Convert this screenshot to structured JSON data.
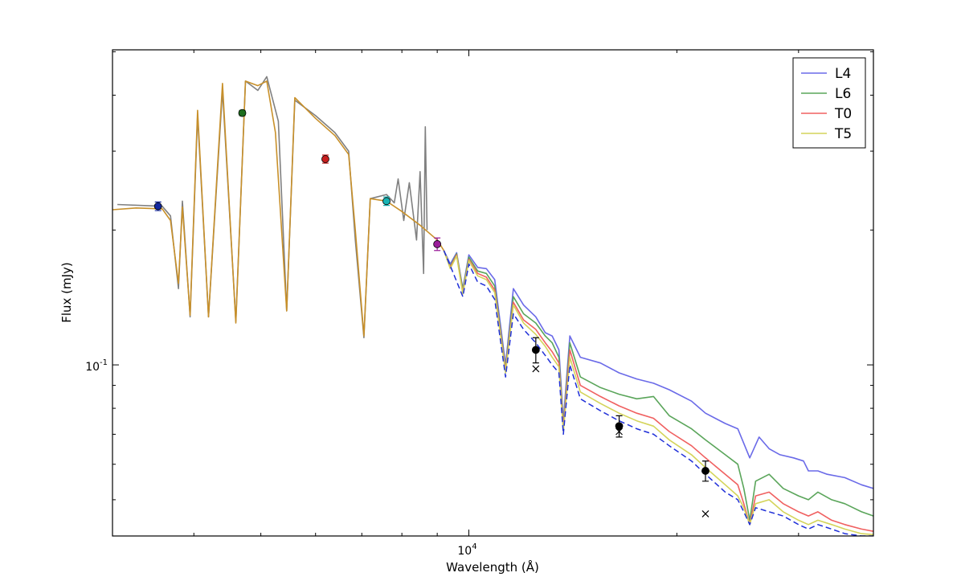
{
  "chart_data": {
    "type": "line",
    "title": "",
    "xlabel": "Wavelength (Å)",
    "ylabel": "Flux (mJy)",
    "x_scale": "log",
    "y_scale": "log",
    "xlim": [
      3050,
      38500
    ],
    "ylim": [
      0.0415,
      0.505
    ],
    "x_major_ticks": [
      {
        "value": 10000,
        "base": "10",
        "exp": "4"
      }
    ],
    "y_major_ticks": [
      {
        "value": 0.1,
        "base": "10",
        "exp": "-1"
      }
    ],
    "grid": false,
    "legend_position": "top-right",
    "legend": [
      {
        "label": "L4",
        "color": "#6a6ae8"
      },
      {
        "label": "L6",
        "color": "#5aa55a"
      },
      {
        "label": "T0",
        "color": "#f06060"
      },
      {
        "label": "T5",
        "color": "#d4d45a"
      }
    ],
    "observed_spectrum": {
      "color": "#808080",
      "points": [
        [
          3100,
          0.228
        ],
        [
          3600,
          0.226
        ],
        [
          3700,
          0.215
        ],
        [
          3800,
          0.148
        ],
        [
          3850,
          0.232
        ],
        [
          3950,
          0.128
        ],
        [
          4050,
          0.36
        ],
        [
          4200,
          0.128
        ],
        [
          4400,
          0.41
        ],
        [
          4600,
          0.125
        ],
        [
          4750,
          0.43
        ],
        [
          4950,
          0.41
        ],
        [
          5100,
          0.44
        ],
        [
          5300,
          0.35
        ],
        [
          5450,
          0.132
        ],
        [
          5600,
          0.39
        ],
        [
          6000,
          0.36
        ],
        [
          6400,
          0.33
        ],
        [
          6700,
          0.3
        ],
        [
          6850,
          0.19
        ],
        [
          7050,
          0.115
        ],
        [
          7200,
          0.235
        ],
        [
          7600,
          0.24
        ],
        [
          7800,
          0.23
        ],
        [
          7900,
          0.26
        ],
        [
          8050,
          0.21
        ],
        [
          8200,
          0.255
        ],
        [
          8400,
          0.19
        ],
        [
          8500,
          0.27
        ],
        [
          8600,
          0.16
        ],
        [
          8650,
          0.34
        ],
        [
          8700,
          0.2
        ]
      ]
    },
    "model_common": {
      "color": "#c8902a",
      "points": [
        [
          3050,
          0.222
        ],
        [
          3300,
          0.224
        ],
        [
          3600,
          0.223
        ],
        [
          3700,
          0.21
        ],
        [
          3800,
          0.152
        ],
        [
          3850,
          0.225
        ],
        [
          3950,
          0.129
        ],
        [
          4050,
          0.37
        ],
        [
          4200,
          0.128
        ],
        [
          4400,
          0.425
        ],
        [
          4600,
          0.124
        ],
        [
          4750,
          0.43
        ],
        [
          4950,
          0.42
        ],
        [
          5100,
          0.43
        ],
        [
          5250,
          0.33
        ],
        [
          5450,
          0.132
        ],
        [
          5600,
          0.395
        ],
        [
          6000,
          0.355
        ],
        [
          6400,
          0.325
        ],
        [
          6700,
          0.295
        ],
        [
          6850,
          0.2
        ],
        [
          7050,
          0.116
        ],
        [
          7200,
          0.235
        ],
        [
          7600,
          0.232
        ],
        [
          8000,
          0.22
        ],
        [
          8500,
          0.205
        ],
        [
          9000,
          0.19
        ],
        [
          9200,
          0.18
        ]
      ]
    },
    "series": [
      {
        "name": "L4",
        "color": "#6a6ae8",
        "points": [
          [
            9200,
            0.18
          ],
          [
            9400,
            0.168
          ],
          [
            9600,
            0.178
          ],
          [
            9800,
            0.148
          ],
          [
            10000,
            0.176
          ],
          [
            10300,
            0.165
          ],
          [
            10600,
            0.164
          ],
          [
            10900,
            0.155
          ],
          [
            11300,
            0.1
          ],
          [
            11600,
            0.148
          ],
          [
            12000,
            0.136
          ],
          [
            12500,
            0.128
          ],
          [
            12900,
            0.118
          ],
          [
            13200,
            0.116
          ],
          [
            13500,
            0.108
          ],
          [
            13700,
            0.075
          ],
          [
            14000,
            0.116
          ],
          [
            14500,
            0.104
          ],
          [
            15500,
            0.101
          ],
          [
            16500,
            0.096
          ],
          [
            17500,
            0.093
          ],
          [
            18500,
            0.091
          ],
          [
            19500,
            0.088
          ],
          [
            21000,
            0.083
          ],
          [
            22000,
            0.078
          ],
          [
            23500,
            0.074
          ],
          [
            24500,
            0.072
          ],
          [
            25500,
            0.062
          ],
          [
            26300,
            0.069
          ],
          [
            27200,
            0.065
          ],
          [
            28200,
            0.063
          ],
          [
            29500,
            0.062
          ],
          [
            30500,
            0.061
          ],
          [
            31000,
            0.058
          ],
          [
            32000,
            0.058
          ],
          [
            33000,
            0.057
          ],
          [
            35000,
            0.056
          ],
          [
            37000,
            0.054
          ],
          [
            38500,
            0.053
          ]
        ]
      },
      {
        "name": "L6",
        "color": "#5aa55a",
        "points": [
          [
            9200,
            0.18
          ],
          [
            9400,
            0.166
          ],
          [
            9600,
            0.177
          ],
          [
            9800,
            0.147
          ],
          [
            10000,
            0.174
          ],
          [
            10300,
            0.162
          ],
          [
            10600,
            0.16
          ],
          [
            10900,
            0.15
          ],
          [
            11300,
            0.098
          ],
          [
            11600,
            0.142
          ],
          [
            12000,
            0.13
          ],
          [
            12500,
            0.124
          ],
          [
            12900,
            0.116
          ],
          [
            13200,
            0.112
          ],
          [
            13500,
            0.104
          ],
          [
            13700,
            0.073
          ],
          [
            14000,
            0.112
          ],
          [
            14500,
            0.094
          ],
          [
            15500,
            0.089
          ],
          [
            16500,
            0.086
          ],
          [
            17500,
            0.084
          ],
          [
            18500,
            0.085
          ],
          [
            19500,
            0.077
          ],
          [
            21000,
            0.072
          ],
          [
            22000,
            0.068
          ],
          [
            23500,
            0.063
          ],
          [
            24500,
            0.06
          ],
          [
            25000,
            0.053
          ],
          [
            25500,
            0.045
          ],
          [
            26000,
            0.055
          ],
          [
            27200,
            0.057
          ],
          [
            28500,
            0.053
          ],
          [
            30000,
            0.051
          ],
          [
            31000,
            0.05
          ],
          [
            32000,
            0.052
          ],
          [
            33500,
            0.05
          ],
          [
            35000,
            0.049
          ],
          [
            37000,
            0.047
          ],
          [
            38500,
            0.046
          ]
        ]
      },
      {
        "name": "T0",
        "color": "#f06060",
        "points": [
          [
            9200,
            0.18
          ],
          [
            9400,
            0.165
          ],
          [
            9600,
            0.176
          ],
          [
            9800,
            0.145
          ],
          [
            10000,
            0.172
          ],
          [
            10300,
            0.16
          ],
          [
            10600,
            0.157
          ],
          [
            10900,
            0.147
          ],
          [
            11300,
            0.097
          ],
          [
            11600,
            0.138
          ],
          [
            12000,
            0.126
          ],
          [
            12500,
            0.12
          ],
          [
            12900,
            0.112
          ],
          [
            13200,
            0.107
          ],
          [
            13500,
            0.101
          ],
          [
            13700,
            0.072
          ],
          [
            14000,
            0.108
          ],
          [
            14500,
            0.09
          ],
          [
            15500,
            0.085
          ],
          [
            16500,
            0.081
          ],
          [
            17500,
            0.078
          ],
          [
            18500,
            0.076
          ],
          [
            19500,
            0.071
          ],
          [
            21000,
            0.066
          ],
          [
            22000,
            0.062
          ],
          [
            23500,
            0.057
          ],
          [
            24500,
            0.054
          ],
          [
            25000,
            0.049
          ],
          [
            25500,
            0.044
          ],
          [
            26000,
            0.051
          ],
          [
            27200,
            0.052
          ],
          [
            28500,
            0.049
          ],
          [
            30000,
            0.047
          ],
          [
            31000,
            0.046
          ],
          [
            32000,
            0.047
          ],
          [
            33500,
            0.045
          ],
          [
            35000,
            0.044
          ],
          [
            37000,
            0.043
          ],
          [
            38500,
            0.0425
          ]
        ]
      },
      {
        "name": "T5",
        "color": "#d4d45a",
        "points": [
          [
            9200,
            0.18
          ],
          [
            9400,
            0.164
          ],
          [
            9600,
            0.175
          ],
          [
            9800,
            0.144
          ],
          [
            10000,
            0.171
          ],
          [
            10300,
            0.158
          ],
          [
            10600,
            0.155
          ],
          [
            10900,
            0.145
          ],
          [
            11300,
            0.096
          ],
          [
            11600,
            0.136
          ],
          [
            12000,
            0.124
          ],
          [
            12500,
            0.117
          ],
          [
            12900,
            0.11
          ],
          [
            13200,
            0.104
          ],
          [
            13500,
            0.099
          ],
          [
            13700,
            0.071
          ],
          [
            14000,
            0.104
          ],
          [
            14500,
            0.087
          ],
          [
            15500,
            0.082
          ],
          [
            16500,
            0.078
          ],
          [
            17500,
            0.075
          ],
          [
            18500,
            0.073
          ],
          [
            19500,
            0.068
          ],
          [
            21000,
            0.063
          ],
          [
            22000,
            0.059
          ],
          [
            23500,
            0.054
          ],
          [
            24500,
            0.051
          ],
          [
            25000,
            0.048
          ],
          [
            25500,
            0.044
          ],
          [
            26000,
            0.049
          ],
          [
            27200,
            0.05
          ],
          [
            28500,
            0.047
          ],
          [
            30000,
            0.045
          ],
          [
            31000,
            0.044
          ],
          [
            32000,
            0.045
          ],
          [
            33500,
            0.044
          ],
          [
            35000,
            0.043
          ],
          [
            37000,
            0.042
          ],
          [
            38500,
            0.0418
          ]
        ]
      }
    ],
    "dashed_model": {
      "color": "#1f2fd8",
      "points": [
        [
          9200,
          0.18
        ],
        [
          9500,
          0.16
        ],
        [
          9800,
          0.142
        ],
        [
          10000,
          0.168
        ],
        [
          10300,
          0.153
        ],
        [
          10600,
          0.15
        ],
        [
          10900,
          0.14
        ],
        [
          11300,
          0.094
        ],
        [
          11600,
          0.13
        ],
        [
          12000,
          0.12
        ],
        [
          12500,
          0.112
        ],
        [
          12900,
          0.105
        ],
        [
          13200,
          0.1
        ],
        [
          13500,
          0.096
        ],
        [
          13700,
          0.07
        ],
        [
          14000,
          0.1
        ],
        [
          14500,
          0.084
        ],
        [
          15500,
          0.079
        ],
        [
          16500,
          0.075
        ],
        [
          17500,
          0.072
        ],
        [
          18500,
          0.07
        ],
        [
          19500,
          0.066
        ],
        [
          21000,
          0.061
        ],
        [
          22000,
          0.057
        ],
        [
          23500,
          0.052
        ],
        [
          24500,
          0.05
        ],
        [
          25000,
          0.047
        ],
        [
          25500,
          0.044
        ],
        [
          26000,
          0.048
        ],
        [
          27200,
          0.047
        ],
        [
          28500,
          0.046
        ],
        [
          30000,
          0.044
        ],
        [
          31000,
          0.043
        ],
        [
          32000,
          0.044
        ],
        [
          33500,
          0.043
        ],
        [
          35000,
          0.042
        ],
        [
          37000,
          0.0415
        ],
        [
          38500,
          0.0415
        ]
      ]
    },
    "photometry": [
      {
        "x": 3550,
        "y": 0.226,
        "err": 0.005,
        "color": "#1428a0"
      },
      {
        "x": 4700,
        "y": 0.365,
        "err": 0.005,
        "color": "#1e6e1e"
      },
      {
        "x": 6200,
        "y": 0.288,
        "err": 0.006,
        "color": "#c81e1e"
      },
      {
        "x": 7600,
        "y": 0.232,
        "err": 0.005,
        "color": "#18b4b4"
      },
      {
        "x": 9000,
        "y": 0.186,
        "err": 0.006,
        "color": "#9a1e9a"
      },
      {
        "x": 12500,
        "y": 0.108,
        "err": 0.007,
        "color": "#000000"
      },
      {
        "x": 16500,
        "y": 0.073,
        "err": 0.004,
        "color": "#000000"
      },
      {
        "x": 22000,
        "y": 0.058,
        "err": 0.003,
        "color": "#000000"
      }
    ],
    "model_photometry_markers": [
      {
        "x": 12500,
        "y": 0.098
      },
      {
        "x": 16500,
        "y": 0.071
      },
      {
        "x": 22000,
        "y": 0.0465
      }
    ]
  }
}
